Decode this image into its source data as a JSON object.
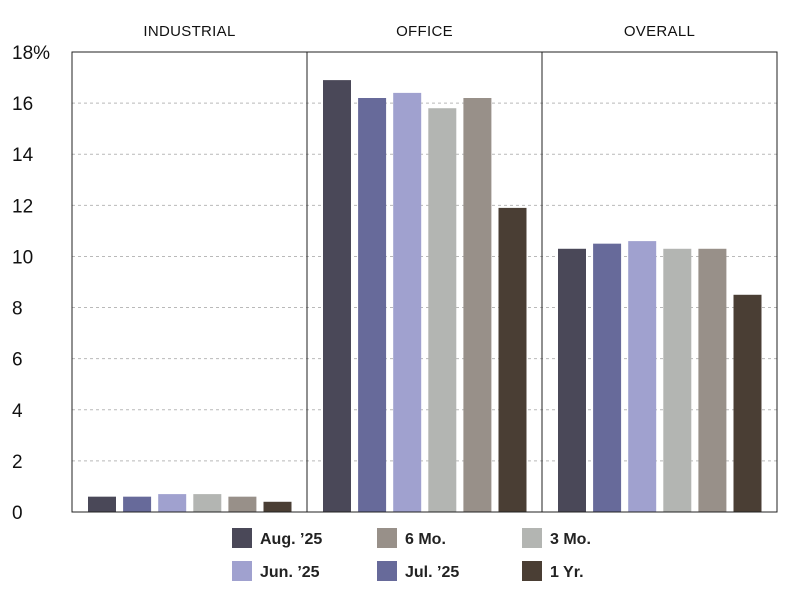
{
  "chart_data": {
    "type": "bar",
    "panels": [
      "INDUSTRIAL",
      "OFFICE",
      "OVERALL"
    ],
    "series": [
      {
        "name": "Aug. ’25",
        "color": "#4a4858",
        "values": [
          0.6,
          16.9,
          10.3
        ]
      },
      {
        "name": "Jul. ’25",
        "color": "#676a9a",
        "values": [
          0.6,
          16.2,
          10.5
        ]
      },
      {
        "name": "Jun. ’25",
        "color": "#a0a1cf",
        "values": [
          0.7,
          16.4,
          10.6
        ]
      },
      {
        "name": "3 Mo.",
        "color": "#b3b5b2",
        "values": [
          0.7,
          15.8,
          10.3
        ]
      },
      {
        "name": "6 Mo.",
        "color": "#989089",
        "values": [
          0.6,
          16.2,
          10.3
        ]
      },
      {
        "name": "1 Yr.",
        "color": "#4a3e34",
        "values": [
          0.4,
          11.9,
          8.5
        ]
      }
    ],
    "yticks": [
      {
        "value": 0,
        "label": "0"
      },
      {
        "value": 2,
        "label": "2"
      },
      {
        "value": 4,
        "label": "4"
      },
      {
        "value": 6,
        "label": "6"
      },
      {
        "value": 8,
        "label": "8"
      },
      {
        "value": 10,
        "label": "10"
      },
      {
        "value": 12,
        "label": "12"
      },
      {
        "value": 14,
        "label": "14"
      },
      {
        "value": 16,
        "label": "16"
      },
      {
        "value": 18,
        "label": "18%"
      }
    ],
    "ylim": [
      0,
      18
    ],
    "grid": true,
    "legend_position": "bottom",
    "legend_order": [
      0,
      2,
      4,
      1,
      3,
      5
    ]
  }
}
